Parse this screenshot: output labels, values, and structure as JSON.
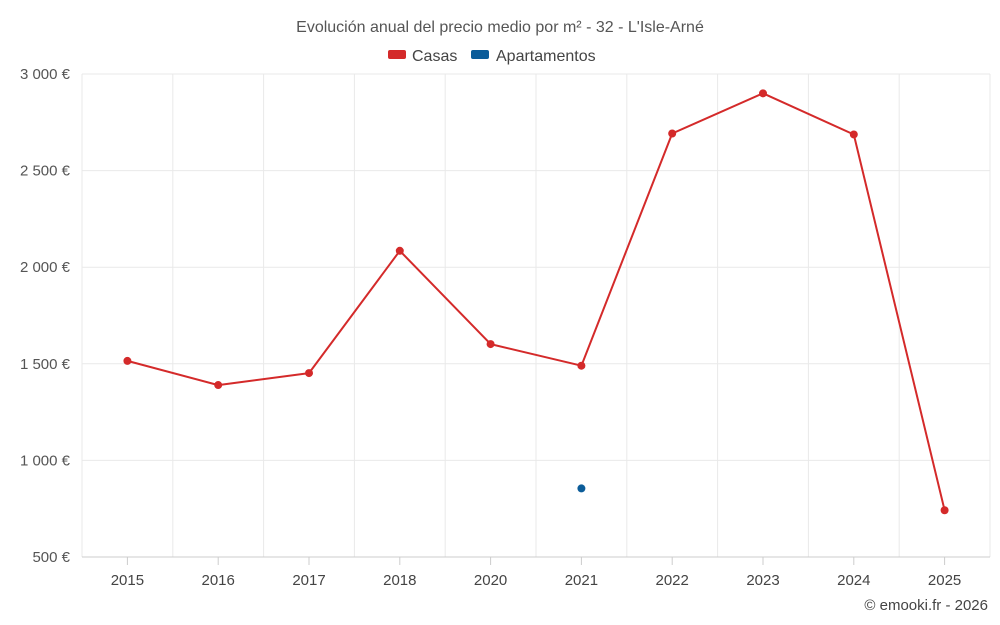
{
  "chart_data": {
    "type": "line",
    "title": "Evolución anual del precio medio por m² - 32 - L'Isle-Arné",
    "categories": [
      "2015",
      "2016",
      "2017",
      "2018",
      "2020",
      "2021",
      "2022",
      "2023",
      "2024",
      "2025"
    ],
    "series": [
      {
        "name": "Casas",
        "color": "#d42a2a",
        "values": [
          1515,
          1390,
          1452,
          2085,
          1602,
          1490,
          2692,
          2900,
          2687,
          742
        ]
      },
      {
        "name": "Apartamentos",
        "color": "#0b5c99",
        "values": [
          null,
          null,
          null,
          null,
          null,
          855,
          null,
          null,
          null,
          null
        ]
      }
    ],
    "ylim": [
      500,
      3000
    ],
    "yticks": [
      500,
      1000,
      1500,
      2000,
      2500,
      3000
    ],
    "ytick_labels": [
      "500 €",
      "1 000 €",
      "1 500 €",
      "2 000 €",
      "2 500 €",
      "3 000 €"
    ],
    "xlabel": "",
    "ylabel": "",
    "legend_position": "top-center",
    "grid": true,
    "credit": "© emooki.fr - 2026"
  }
}
